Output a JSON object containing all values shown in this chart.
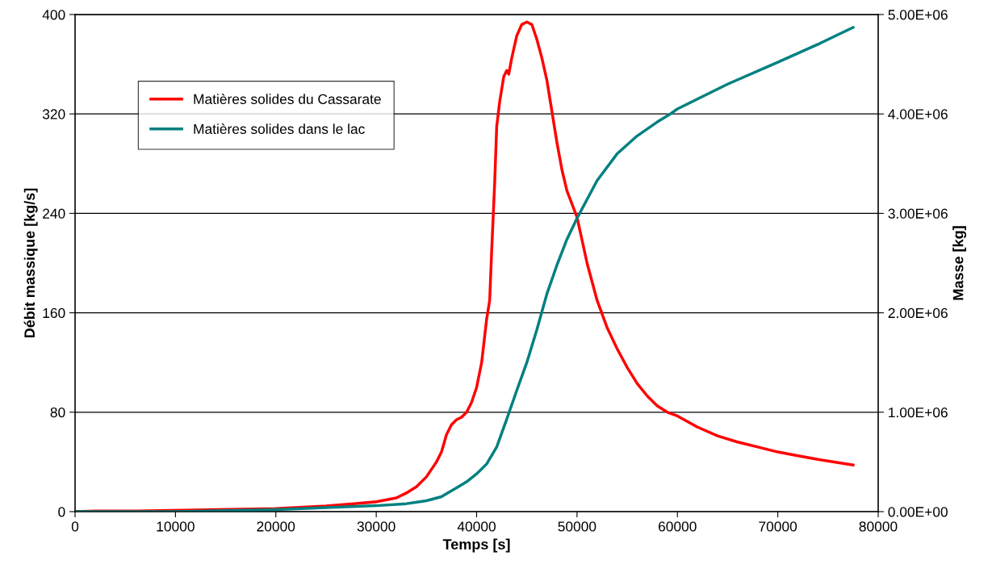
{
  "chart_data": {
    "type": "line",
    "xlabel": "Temps [s]",
    "ylabel": "Débit massique [kg/s]",
    "y2label": "Masse [kg]",
    "xlim": [
      0,
      80000
    ],
    "xticks": [
      0,
      10000,
      20000,
      30000,
      40000,
      50000,
      60000,
      70000,
      80000
    ],
    "ylim": [
      0,
      400
    ],
    "yticks": [
      0,
      80,
      160,
      240,
      320,
      400
    ],
    "y2lim": [
      0,
      5000000
    ],
    "y2ticks": [
      {
        "value": 0,
        "label": "0.00E+00"
      },
      {
        "value": 1000000,
        "label": "1.00E+06"
      },
      {
        "value": 2000000,
        "label": "2.00E+06"
      },
      {
        "value": 3000000,
        "label": "3.00E+06"
      },
      {
        "value": 4000000,
        "label": "4.00E+06"
      },
      {
        "value": 5000000,
        "label": "5.00E+06"
      }
    ],
    "grid": "y",
    "legend": "top left",
    "marker": "none",
    "line_style": "solid",
    "series": [
      {
        "name": "Matières solides du Cassarate",
        "color": "#ff0000",
        "x": [
          0,
          2000,
          6000,
          20000,
          25000,
          28000,
          30000,
          32000,
          33000,
          34000,
          35000,
          36000,
          36500,
          37000,
          37500,
          38000,
          38500,
          39000,
          39500,
          40000,
          40500,
          41000,
          41300,
          41500,
          41800,
          42000,
          42300,
          42700,
          43000,
          43200,
          43500,
          44000,
          44500,
          45000,
          45500,
          46000,
          46500,
          47000,
          47500,
          48000,
          48500,
          49000,
          50000,
          51000,
          52000,
          53000,
          54000,
          55000,
          56000,
          57000,
          58000,
          59000,
          60000,
          62000,
          64000,
          66000,
          68000,
          70000,
          72000,
          74000,
          76000,
          77500
        ],
        "values": [
          0,
          0.5,
          0.5,
          2.5,
          4.5,
          6.5,
          8,
          11,
          15,
          20,
          28,
          40,
          48,
          62,
          70,
          74,
          76,
          80,
          88,
          100,
          120,
          155,
          170,
          210,
          265,
          310,
          330,
          350,
          355,
          352,
          365,
          383,
          392,
          394,
          392,
          380,
          365,
          347,
          322,
          297,
          275,
          258,
          237,
          200,
          170,
          148,
          131,
          116,
          103,
          93,
          85,
          80,
          77,
          68,
          61,
          56,
          52,
          48,
          45,
          42,
          39.5,
          37.5
        ]
      },
      {
        "name": "Matières solides dans le lac",
        "color": "#008080",
        "axis": "y2",
        "x": [
          0,
          10000,
          20000,
          25000,
          30000,
          33000,
          35000,
          36500,
          37000,
          38000,
          39000,
          40000,
          41000,
          42000,
          43000,
          44000,
          45000,
          46000,
          47000,
          48000,
          49000,
          50000,
          52000,
          54000,
          56000,
          58000,
          59300,
          60000,
          65000,
          70000,
          74000,
          77500
        ],
        "values": [
          0,
          0,
          20000,
          40000,
          60000,
          80000,
          110000,
          150000,
          180000,
          240000,
          300000,
          380000,
          480000,
          650000,
          930000,
          1220000,
          1500000,
          1830000,
          2190000,
          2480000,
          2740000,
          2950000,
          3330000,
          3600000,
          3780000,
          3920000,
          4000000,
          4050000,
          4300000,
          4520000,
          4700000,
          4870000
        ]
      }
    ]
  }
}
